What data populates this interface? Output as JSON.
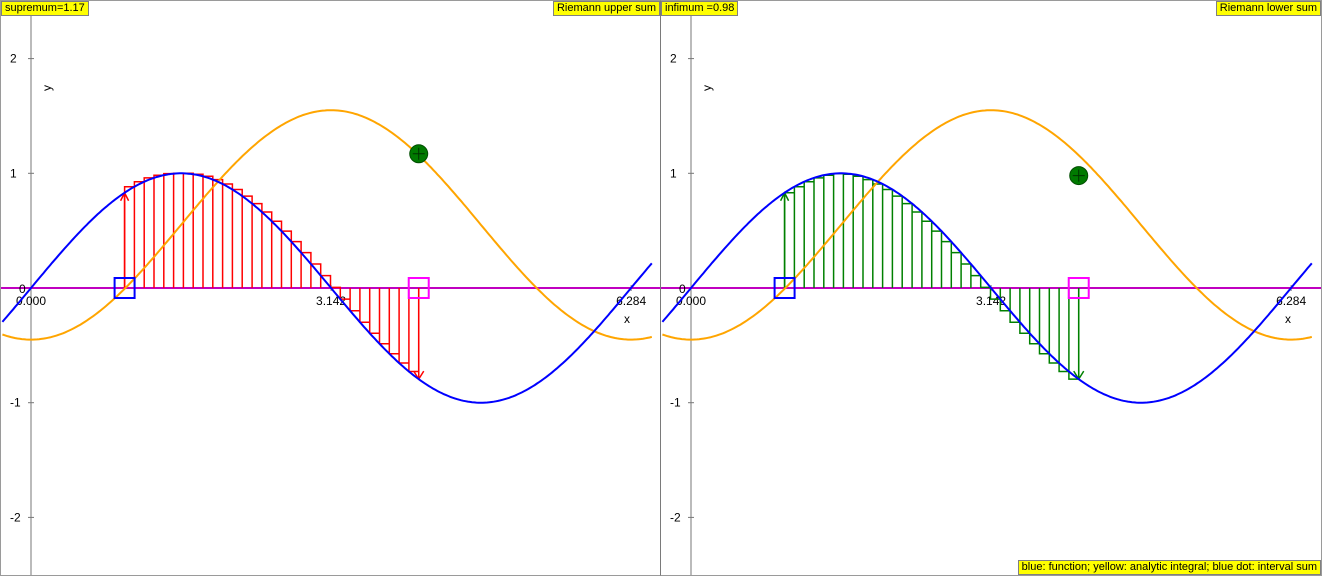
{
  "left_panel": {
    "value_label": "supremum=1.17",
    "title_label": "Riemann upper sum"
  },
  "right_panel": {
    "value_label": "infimum =0.98",
    "title_label": "Riemann lower sum",
    "legend_label": "blue: function; yellow: analytic integral; blue dot: interval sum"
  },
  "colors": {
    "function": "#0000ff",
    "integral": "#ffa500",
    "axis_line": "#c000c0",
    "upper_rects": "#ff0000",
    "lower_rects": "#008000",
    "dot": "#007a00",
    "start_marker": "#0000ff",
    "end_marker": "#ff00ff"
  },
  "chart_data": [
    {
      "type": "line",
      "title": "Riemann upper sum",
      "xlabel": "x",
      "ylabel": "y",
      "x_tick_labels": [
        "0.000",
        "3.142",
        "6.284"
      ],
      "x_ticks": [
        0,
        3.142,
        6.284
      ],
      "y_ticks": [
        -2,
        -1,
        0,
        1,
        2
      ],
      "y_tick_labels": [
        "-2",
        "-1",
        "0",
        "1",
        "2"
      ],
      "xlim": [
        -0.3,
        6.55
      ],
      "ylim": [
        -2.5,
        2.5
      ],
      "series": [
        {
          "function": "sin(x)",
          "x_range": [
            -0.3,
            6.5
          ]
        },
        {
          "function": "-cos(x)+0.55",
          "x_range": [
            -0.3,
            6.5
          ]
        }
      ],
      "interval": [
        0.98,
        4.06
      ],
      "subintervals": 30,
      "rule": "upper",
      "interval_sum": {
        "x": 4.06,
        "y": 1.17
      }
    },
    {
      "type": "line",
      "title": "Riemann lower sum",
      "xlabel": "x",
      "ylabel": "y",
      "x_tick_labels": [
        "0.000",
        "3.142",
        "6.284"
      ],
      "x_ticks": [
        0,
        3.142,
        6.284
      ],
      "y_ticks": [
        -2,
        -1,
        0,
        1,
        2
      ],
      "y_tick_labels": [
        "-2",
        "-1",
        "0",
        "1",
        "2"
      ],
      "xlim": [
        -0.3,
        6.55
      ],
      "ylim": [
        -2.5,
        2.5
      ],
      "series": [
        {
          "function": "sin(x)",
          "x_range": [
            -0.3,
            6.5
          ]
        },
        {
          "function": "-cos(x)+0.55",
          "x_range": [
            -0.3,
            6.5
          ]
        }
      ],
      "interval": [
        0.98,
        4.06
      ],
      "subintervals": 30,
      "rule": "lower",
      "interval_sum": {
        "x": 4.06,
        "y": 0.98
      }
    }
  ]
}
